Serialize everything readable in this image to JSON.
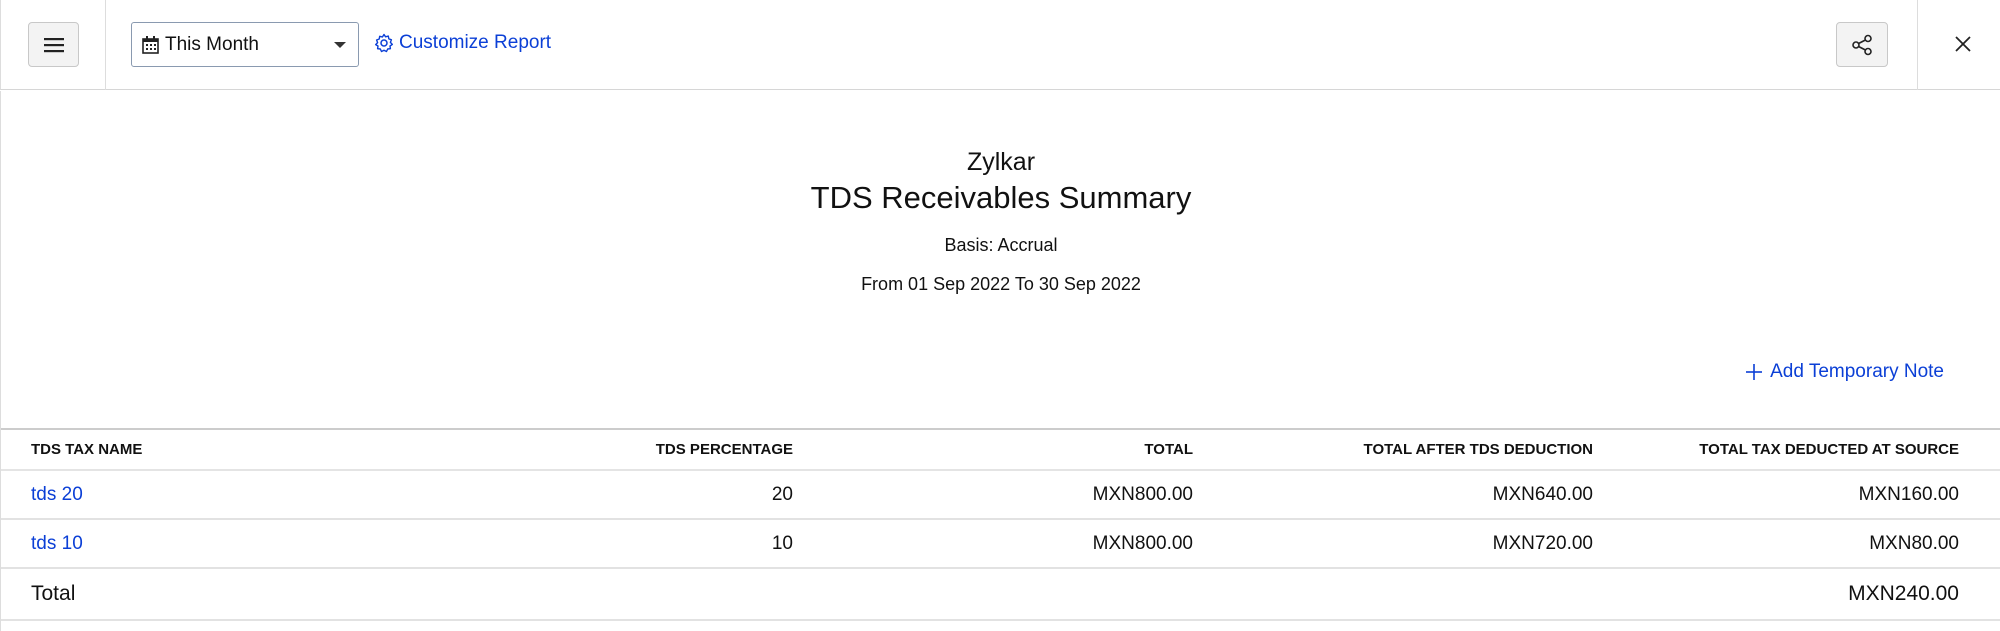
{
  "toolbar": {
    "period_select": {
      "value": "This Month"
    },
    "customize_label": "Customize Report",
    "icons": {
      "menu": "hamburger-icon",
      "calendar": "calendar-icon",
      "settings": "gear-icon",
      "share": "share-icon",
      "close": "close-icon"
    }
  },
  "report": {
    "company": "Zylkar",
    "title": "TDS Receivables Summary",
    "basis": "Basis: Accrual",
    "period": "From 01 Sep 2022 To 30 Sep 2022",
    "add_note_label": "Add Temporary Note"
  },
  "table": {
    "headers": [
      "TDS TAX NAME",
      "TDS PERCENTAGE",
      "TOTAL",
      "TOTAL AFTER TDS DEDUCTION",
      "TOTAL TAX DEDUCTED AT SOURCE"
    ],
    "rows": [
      {
        "name": "tds 20",
        "percentage": "20",
        "total": "MXN800.00",
        "after": "MXN640.00",
        "deducted": "MXN160.00"
      },
      {
        "name": "tds 10",
        "percentage": "10",
        "total": "MXN800.00",
        "after": "MXN720.00",
        "deducted": "MXN80.00"
      }
    ],
    "total": {
      "label": "Total",
      "deducted": "MXN240.00"
    }
  },
  "colors": {
    "link": "#0b3fd6",
    "border": "#dddddd"
  }
}
